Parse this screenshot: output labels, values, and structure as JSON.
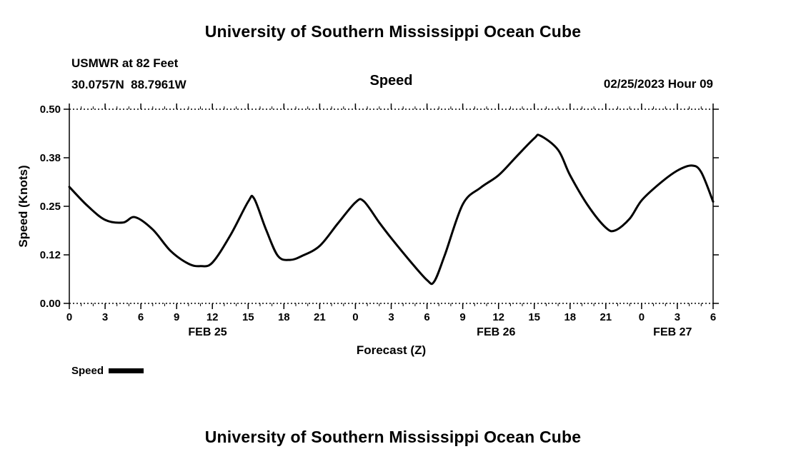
{
  "page": {
    "top_title": "University of Southern Mississippi Ocean Cube",
    "bottom_title": "University of Southern Mississippi Ocean Cube"
  },
  "header": {
    "station": "USMWR at 82 Feet",
    "coordinates": "30.0757N  88.7961W",
    "subtitle": "Speed",
    "datetime": "02/25/2023 Hour 09"
  },
  "legend": {
    "label": "Speed"
  },
  "colors": {
    "line": "#000000",
    "text": "#000000",
    "background": "#ffffff"
  },
  "chart_data": {
    "type": "line",
    "title": "Speed",
    "xlabel": "Forecast (Z)",
    "ylabel": "Speed (Knots)",
    "xlim": [
      0,
      54
    ],
    "ylim": [
      0,
      0.5
    ],
    "grid": false,
    "legend_position": "bottom-left",
    "x_major_ticks": [
      0,
      3,
      6,
      9,
      12,
      15,
      18,
      21,
      24,
      27,
      30,
      33,
      36,
      39,
      42,
      45,
      48,
      51,
      54
    ],
    "x_tick_labels": [
      "0",
      "3",
      "6",
      "9",
      "12",
      "15",
      "18",
      "21",
      "0",
      "3",
      "6",
      "9",
      "12",
      "15",
      "18",
      "21",
      "0",
      "3",
      "6"
    ],
    "x_minor_step": 1,
    "y_ticks": [
      0,
      0.125,
      0.25,
      0.375,
      0.5
    ],
    "y_tick_labels": [
      "0.00",
      "0.12",
      "0.25",
      "0.38",
      "0.50"
    ],
    "date_labels": [
      {
        "label": "FEB 25",
        "hour": 11.6
      },
      {
        "label": "FEB 26",
        "hour": 35.8
      },
      {
        "label": "FEB 27",
        "hour": 50.6
      }
    ],
    "series": [
      {
        "name": "Speed",
        "color": "#000000",
        "points": [
          [
            0,
            0.3
          ],
          [
            1.5,
            0.252
          ],
          [
            3,
            0.215
          ],
          [
            4.5,
            0.208
          ],
          [
            5.5,
            0.222
          ],
          [
            7,
            0.19
          ],
          [
            8.5,
            0.135
          ],
          [
            10,
            0.102
          ],
          [
            11,
            0.096
          ],
          [
            12,
            0.105
          ],
          [
            13.5,
            0.175
          ],
          [
            15,
            0.262
          ],
          [
            15.5,
            0.27
          ],
          [
            16.5,
            0.19
          ],
          [
            17.5,
            0.122
          ],
          [
            18.5,
            0.112
          ],
          [
            19.5,
            0.122
          ],
          [
            21,
            0.148
          ],
          [
            22.5,
            0.205
          ],
          [
            24,
            0.26
          ],
          [
            24.7,
            0.263
          ],
          [
            26,
            0.208
          ],
          [
            27,
            0.168
          ],
          [
            28.5,
            0.112
          ],
          [
            30,
            0.06
          ],
          [
            30.6,
            0.056
          ],
          [
            31.5,
            0.125
          ],
          [
            33,
            0.255
          ],
          [
            34.5,
            0.298
          ],
          [
            36,
            0.33
          ],
          [
            37.5,
            0.378
          ],
          [
            39,
            0.425
          ],
          [
            39.5,
            0.432
          ],
          [
            41,
            0.395
          ],
          [
            42,
            0.33
          ],
          [
            43.5,
            0.252
          ],
          [
            45,
            0.195
          ],
          [
            45.8,
            0.188
          ],
          [
            47,
            0.218
          ],
          [
            48,
            0.265
          ],
          [
            49.5,
            0.308
          ],
          [
            51,
            0.342
          ],
          [
            52.2,
            0.355
          ],
          [
            53,
            0.338
          ],
          [
            54,
            0.262
          ]
        ]
      }
    ]
  }
}
